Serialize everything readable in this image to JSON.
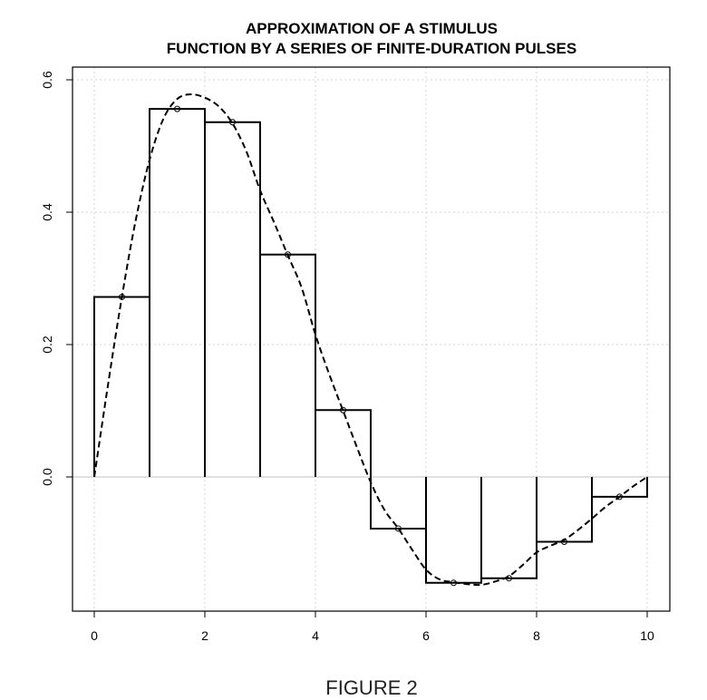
{
  "chart_data": {
    "type": "bar",
    "title": "APPROXIMATION OF A STIMULUS",
    "subtitle": "FUNCTION BY A SERIES OF FINITE-DURATION PULSES",
    "caption": "FIGURE 2",
    "xlabel": "",
    "ylabel": "",
    "xlim": [
      0,
      10
    ],
    "ylim": [
      -0.2,
      0.6
    ],
    "x_ticks": [
      0,
      2,
      4,
      6,
      8,
      10
    ],
    "x_tick_labels": [
      "0",
      "2",
      "4",
      "6",
      "8",
      "10"
    ],
    "y_ticks": [
      0.0,
      0.2,
      0.4,
      0.6
    ],
    "y_tick_labels": [
      "0.0",
      "0.2",
      "0.4",
      "0.6"
    ],
    "grid": true,
    "series": [
      {
        "type": "step-bar",
        "x_start": [
          0,
          1,
          2,
          3,
          4,
          5,
          6,
          7,
          8,
          9
        ],
        "x_end": [
          1,
          2,
          3,
          4,
          5,
          6,
          7,
          8,
          9,
          10
        ],
        "values": [
          0.272,
          0.556,
          0.536,
          0.336,
          0.101,
          -0.078,
          -0.16,
          -0.153,
          -0.098,
          -0.03
        ]
      },
      {
        "type": "line",
        "style": "dashed",
        "x": [
          0,
          0.25,
          0.5,
          0.75,
          1,
          1.25,
          1.5,
          1.75,
          2,
          2.25,
          2.5,
          2.75,
          3,
          3.25,
          3.5,
          3.75,
          4,
          4.25,
          4.5,
          4.75,
          5,
          5.25,
          5.5,
          5.75,
          6,
          6.25,
          6.5,
          6.75,
          7,
          7.25,
          7.5,
          7.75,
          8,
          8.25,
          8.5,
          8.75,
          9,
          9.25,
          9.5,
          9.75,
          10
        ],
        "y": [
          0.0,
          0.14,
          0.272,
          0.388,
          0.479,
          0.541,
          0.571,
          0.578,
          0.573,
          0.56,
          0.534,
          0.492,
          0.433,
          0.385,
          0.335,
          0.286,
          0.215,
          0.155,
          0.1,
          0.045,
          -0.008,
          -0.05,
          -0.078,
          -0.11,
          -0.14,
          -0.155,
          -0.159,
          -0.162,
          -0.163,
          -0.158,
          -0.15,
          -0.133,
          -0.114,
          -0.104,
          -0.095,
          -0.08,
          -0.063,
          -0.045,
          -0.03,
          -0.014,
          0.0
        ]
      },
      {
        "type": "scatter",
        "marker": "circle",
        "x": [
          0.5,
          1.5,
          2.5,
          3.5,
          4.5,
          5.5,
          6.5,
          7.5,
          8.5,
          9.5
        ],
        "y": [
          0.272,
          0.556,
          0.536,
          0.336,
          0.101,
          -0.078,
          -0.16,
          -0.153,
          -0.098,
          -0.03
        ]
      }
    ]
  }
}
